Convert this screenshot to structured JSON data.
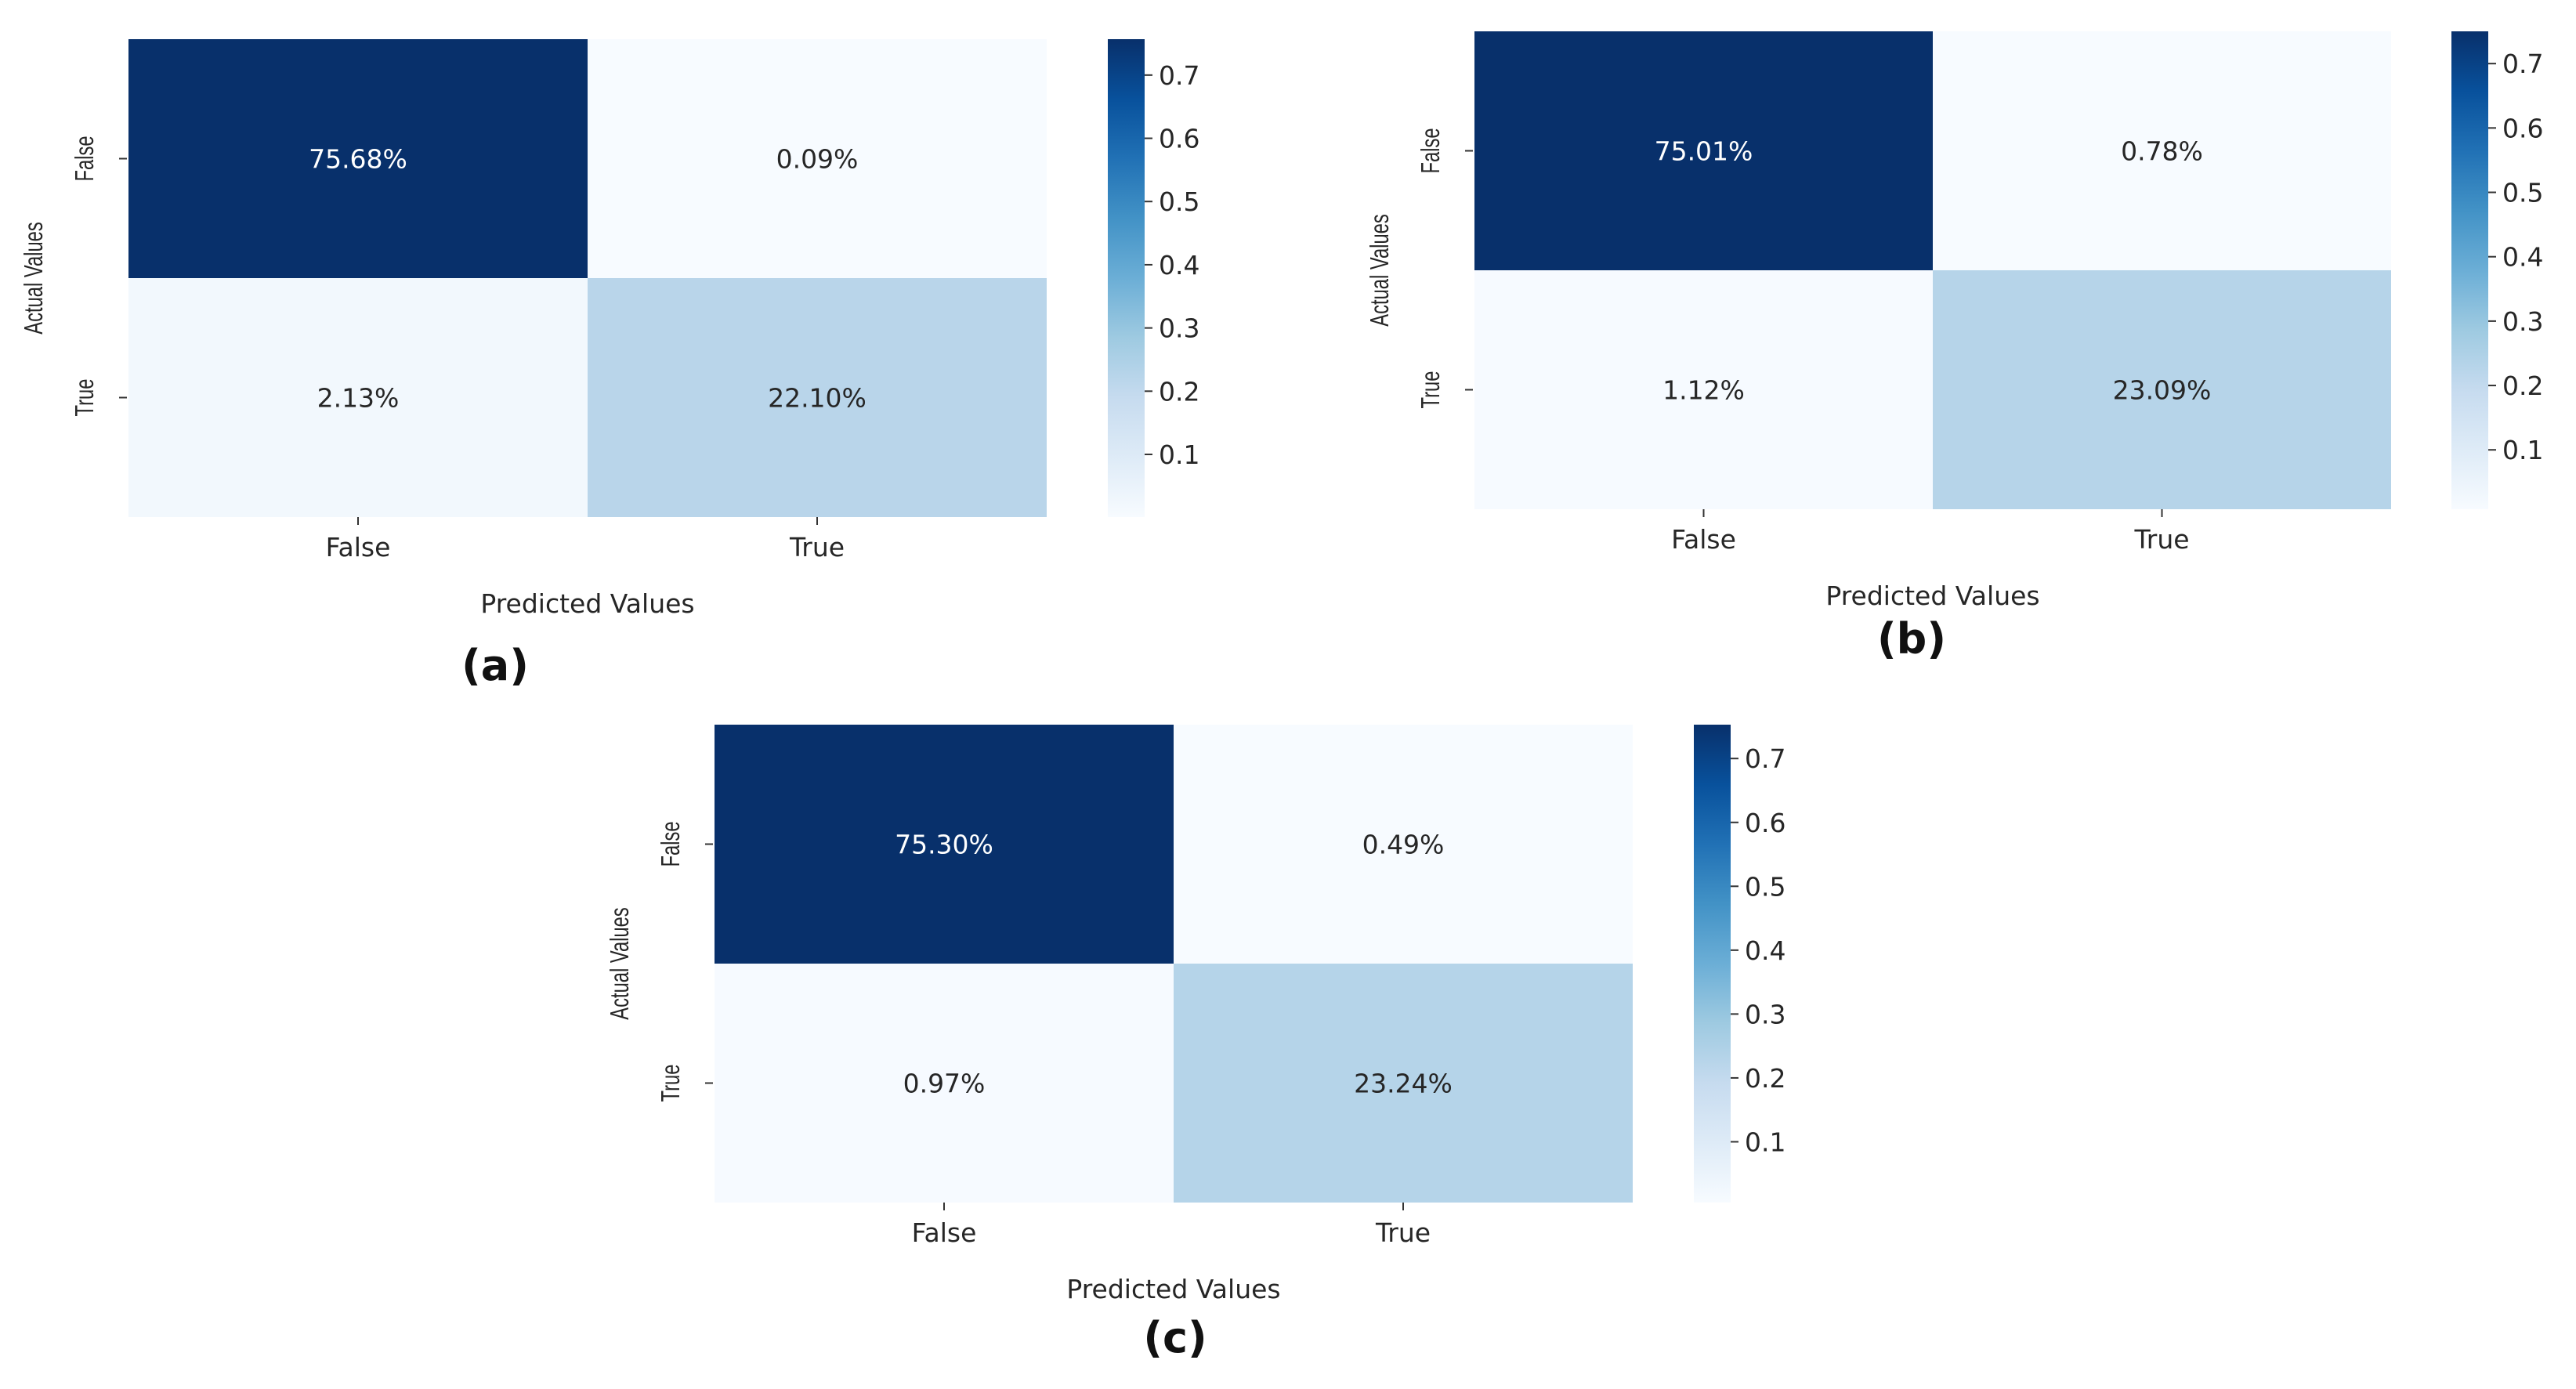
{
  "chart_data": [
    {
      "type": "heatmap",
      "panel_label": "(a)",
      "xlabel": "Predicted Values",
      "ylabel": "Actual Values",
      "x_categories": [
        "False",
        "True"
      ],
      "y_categories": [
        "False",
        "True"
      ],
      "values": [
        [
          0.7568,
          0.0009
        ],
        [
          0.0213,
          0.221
        ]
      ],
      "annotations": [
        [
          "75.68%",
          "0.09%"
        ],
        [
          "2.13%",
          "22.10%"
        ]
      ],
      "colormap": "Blues",
      "vmin": 0.0009,
      "vmax": 0.7568,
      "colorbar_ticks": [
        0.1,
        0.2,
        0.3,
        0.4,
        0.5,
        0.6,
        0.7
      ]
    },
    {
      "type": "heatmap",
      "panel_label": "(b)",
      "xlabel": "Predicted Values",
      "ylabel": "Actual Values",
      "x_categories": [
        "False",
        "True"
      ],
      "y_categories": [
        "False",
        "True"
      ],
      "values": [
        [
          0.7501,
          0.0078
        ],
        [
          0.0112,
          0.2309
        ]
      ],
      "annotations": [
        [
          "75.01%",
          "0.78%"
        ],
        [
          "1.12%",
          "23.09%"
        ]
      ],
      "colormap": "Blues",
      "vmin": 0.0078,
      "vmax": 0.7501,
      "colorbar_ticks": [
        0.1,
        0.2,
        0.3,
        0.4,
        0.5,
        0.6,
        0.7
      ]
    },
    {
      "type": "heatmap",
      "panel_label": "(c)",
      "xlabel": "Predicted Values",
      "ylabel": "Actual Values",
      "x_categories": [
        "False",
        "True"
      ],
      "y_categories": [
        "False",
        "True"
      ],
      "values": [
        [
          0.753,
          0.0049
        ],
        [
          0.0097,
          0.2324
        ]
      ],
      "annotations": [
        [
          "75.30%",
          "0.49%"
        ],
        [
          "0.97%",
          "23.24%"
        ]
      ],
      "colormap": "Blues",
      "vmin": 0.0049,
      "vmax": 0.753,
      "colorbar_ticks": [
        0.1,
        0.2,
        0.3,
        0.4,
        0.5,
        0.6,
        0.7
      ]
    }
  ],
  "colors": {
    "cmap_stops": [
      "#f7fbff",
      "#deebf7",
      "#c6dbef",
      "#9ecae1",
      "#6baed6",
      "#4292c6",
      "#2171b5",
      "#08519c",
      "#08306b"
    ],
    "text_dark": "#262626",
    "text_light": "#ffffff"
  }
}
